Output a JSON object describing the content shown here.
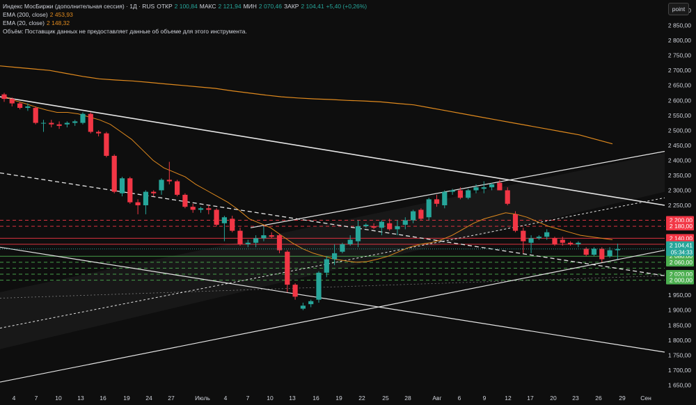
{
  "header": {
    "instrument": "Индекс МосБиржи (дополнительная сессия) · 1Д · RUS",
    "open_label": "ОТКР",
    "open_value": "2 100,84",
    "high_label": "МАКС",
    "high_value": "2 121,94",
    "low_label": "МИН",
    "low_value": "2 070,46",
    "close_label": "ЗАКР",
    "close_value": "2 104,41",
    "change": "+5,40 (+0,26%)",
    "ema200_label": "EMA (200, close)",
    "ema200_value": "2 453,93",
    "ema20_label": "EMA (20, close)",
    "ema20_value": "2 148,32",
    "volume_note": "Объём: Поставщик данных не предоставляет данные об объеме для этого инструмента."
  },
  "toolbar": {
    "point_label": "point"
  },
  "chart_data": {
    "type": "candlestick",
    "ylim": [
      1630,
      2935
    ],
    "y_ticks": [
      1650,
      1700,
      1750,
      1800,
      1850,
      1900,
      1950,
      2000,
      2050,
      2100,
      2150,
      2200,
      2250,
      2300,
      2350,
      2400,
      2450,
      2500,
      2550,
      2600,
      2650,
      2700,
      2750,
      2800,
      2850,
      2900
    ],
    "y_tick_labels": [
      "1 650,00",
      "1 700,00",
      "1 750,00",
      "1 800,00",
      "1 850,00",
      "1 900,00",
      "1 950,00",
      "2 000,00",
      "2 050,00",
      "2 100,00",
      "2 150,00",
      "2 200,00",
      "2 250,00",
      "2 300,00",
      "2 350,00",
      "2 400,00",
      "2 450,00",
      "2 500,00",
      "2 550,00",
      "2 600,00",
      "2 650,00",
      "2 700,00",
      "2 750,00",
      "2 800,00",
      "2 850,00",
      "2 900,00"
    ],
    "x_labels": [
      "4",
      "7",
      "10",
      "13",
      "16",
      "19",
      "24",
      "27",
      "Июль",
      "4",
      "7",
      "10",
      "13",
      "16",
      "19",
      "22",
      "25",
      "28",
      "Авг",
      "6",
      "9",
      "12",
      "17",
      "20",
      "23",
      "26",
      "29",
      "Сен"
    ],
    "candles": [
      {
        "o": 2620,
        "h": 2625,
        "l": 2595,
        "c": 2605
      },
      {
        "o": 2605,
        "h": 2610,
        "l": 2580,
        "c": 2590
      },
      {
        "o": 2590,
        "h": 2595,
        "l": 2570,
        "c": 2575
      },
      {
        "o": 2575,
        "h": 2590,
        "l": 2565,
        "c": 2580
      },
      {
        "o": 2575,
        "h": 2580,
        "l": 2520,
        "c": 2525
      },
      {
        "o": 2525,
        "h": 2535,
        "l": 2495,
        "c": 2525
      },
      {
        "o": 2525,
        "h": 2535,
        "l": 2510,
        "c": 2520
      },
      {
        "o": 2520,
        "h": 2530,
        "l": 2505,
        "c": 2515
      },
      {
        "o": 2520,
        "h": 2530,
        "l": 2510,
        "c": 2525
      },
      {
        "o": 2525,
        "h": 2535,
        "l": 2515,
        "c": 2530
      },
      {
        "o": 2525,
        "h": 2560,
        "l": 2520,
        "c": 2555
      },
      {
        "o": 2555,
        "h": 2560,
        "l": 2490,
        "c": 2495
      },
      {
        "o": 2495,
        "h": 2500,
        "l": 2480,
        "c": 2490
      },
      {
        "o": 2490,
        "h": 2495,
        "l": 2410,
        "c": 2415
      },
      {
        "o": 2415,
        "h": 2420,
        "l": 2290,
        "c": 2295
      },
      {
        "o": 2290,
        "h": 2345,
        "l": 2280,
        "c": 2340
      },
      {
        "o": 2340,
        "h": 2345,
        "l": 2255,
        "c": 2260
      },
      {
        "o": 2260,
        "h": 2270,
        "l": 2220,
        "c": 2250
      },
      {
        "o": 2250,
        "h": 2300,
        "l": 2220,
        "c": 2295
      },
      {
        "o": 2295,
        "h": 2300,
        "l": 2280,
        "c": 2290
      },
      {
        "o": 2300,
        "h": 2340,
        "l": 2285,
        "c": 2335
      },
      {
        "o": 2335,
        "h": 2395,
        "l": 2320,
        "c": 2330
      },
      {
        "o": 2330,
        "h": 2335,
        "l": 2280,
        "c": 2285
      },
      {
        "o": 2285,
        "h": 2290,
        "l": 2240,
        "c": 2245
      },
      {
        "o": 2245,
        "h": 2255,
        "l": 2225,
        "c": 2235
      },
      {
        "o": 2235,
        "h": 2245,
        "l": 2225,
        "c": 2240
      },
      {
        "o": 2240,
        "h": 2250,
        "l": 2220,
        "c": 2235
      },
      {
        "o": 2235,
        "h": 2240,
        "l": 2180,
        "c": 2185
      },
      {
        "o": 2190,
        "h": 2215,
        "l": 2130,
        "c": 2210
      },
      {
        "o": 2205,
        "h": 2215,
        "l": 2160,
        "c": 2165
      },
      {
        "o": 2165,
        "h": 2175,
        "l": 2115,
        "c": 2120
      },
      {
        "o": 2120,
        "h": 2135,
        "l": 2110,
        "c": 2125
      },
      {
        "o": 2125,
        "h": 2150,
        "l": 2110,
        "c": 2140
      },
      {
        "o": 2140,
        "h": 2180,
        "l": 2130,
        "c": 2150
      },
      {
        "o": 2150,
        "h": 2160,
        "l": 2140,
        "c": 2145
      },
      {
        "o": 2150,
        "h": 2155,
        "l": 2090,
        "c": 2100
      },
      {
        "o": 2095,
        "h": 2100,
        "l": 1960,
        "c": 1985
      },
      {
        "o": 1985,
        "h": 1990,
        "l": 1935,
        "c": 1945
      },
      {
        "o": 1905,
        "h": 1925,
        "l": 1900,
        "c": 1915
      },
      {
        "o": 1920,
        "h": 1935,
        "l": 1910,
        "c": 1930
      },
      {
        "o": 1935,
        "h": 2030,
        "l": 1925,
        "c": 2025
      },
      {
        "o": 2025,
        "h": 2080,
        "l": 2010,
        "c": 2070
      },
      {
        "o": 2070,
        "h": 2120,
        "l": 2050,
        "c": 2090
      },
      {
        "o": 2095,
        "h": 2125,
        "l": 2090,
        "c": 2120
      },
      {
        "o": 2120,
        "h": 2150,
        "l": 2115,
        "c": 2135
      },
      {
        "o": 2130,
        "h": 2200,
        "l": 2110,
        "c": 2180
      },
      {
        "o": 2180,
        "h": 2190,
        "l": 2175,
        "c": 2185
      },
      {
        "o": 2180,
        "h": 2190,
        "l": 2170,
        "c": 2175
      },
      {
        "o": 2175,
        "h": 2200,
        "l": 2150,
        "c": 2195
      },
      {
        "o": 2190,
        "h": 2205,
        "l": 2165,
        "c": 2170
      },
      {
        "o": 2170,
        "h": 2200,
        "l": 2150,
        "c": 2180
      },
      {
        "o": 2185,
        "h": 2210,
        "l": 2170,
        "c": 2200
      },
      {
        "o": 2200,
        "h": 2235,
        "l": 2190,
        "c": 2230
      },
      {
        "o": 2235,
        "h": 2240,
        "l": 2200,
        "c": 2205
      },
      {
        "o": 2210,
        "h": 2275,
        "l": 2200,
        "c": 2270
      },
      {
        "o": 2270,
        "h": 2285,
        "l": 2245,
        "c": 2255
      },
      {
        "o": 2250,
        "h": 2300,
        "l": 2240,
        "c": 2295
      },
      {
        "o": 2295,
        "h": 2305,
        "l": 2285,
        "c": 2300
      },
      {
        "o": 2300,
        "h": 2310,
        "l": 2270,
        "c": 2275
      },
      {
        "o": 2275,
        "h": 2305,
        "l": 2270,
        "c": 2300
      },
      {
        "o": 2300,
        "h": 2320,
        "l": 2290,
        "c": 2310
      },
      {
        "o": 2305,
        "h": 2330,
        "l": 2290,
        "c": 2310
      },
      {
        "o": 2310,
        "h": 2325,
        "l": 2300,
        "c": 2320
      },
      {
        "o": 2325,
        "h": 2335,
        "l": 2300,
        "c": 2300
      },
      {
        "o": 2300,
        "h": 2310,
        "l": 2250,
        "c": 2255
      },
      {
        "o": 2220,
        "h": 2230,
        "l": 2160,
        "c": 2165
      },
      {
        "o": 2165,
        "h": 2175,
        "l": 2090,
        "c": 2130
      },
      {
        "o": 2125,
        "h": 2150,
        "l": 2090,
        "c": 2140
      },
      {
        "o": 2140,
        "h": 2150,
        "l": 2135,
        "c": 2145
      },
      {
        "o": 2145,
        "h": 2170,
        "l": 2135,
        "c": 2160
      },
      {
        "o": 2140,
        "h": 2145,
        "l": 2115,
        "c": 2120
      },
      {
        "o": 2135,
        "h": 2145,
        "l": 2115,
        "c": 2125
      },
      {
        "o": 2125,
        "h": 2130,
        "l": 2115,
        "c": 2120
      },
      {
        "o": 2120,
        "h": 2130,
        "l": 2110,
        "c": 2125
      },
      {
        "o": 2105,
        "h": 2110,
        "l": 2080,
        "c": 2085
      },
      {
        "o": 2085,
        "h": 2110,
        "l": 2080,
        "c": 2105
      },
      {
        "o": 2105,
        "h": 2110,
        "l": 2060,
        "c": 2070
      },
      {
        "o": 2080,
        "h": 2110,
        "l": 2075,
        "c": 2100
      },
      {
        "o": 2100,
        "h": 2122,
        "l": 2070,
        "c": 2104
      }
    ],
    "ema200": [
      2715,
      2710,
      2705,
      2700,
      2690,
      2680,
      2672,
      2668,
      2665,
      2660,
      2655,
      2650,
      2645,
      2640,
      2632,
      2625,
      2618,
      2612,
      2608,
      2605,
      2603,
      2600,
      2598,
      2595,
      2590,
      2585,
      2575,
      2565,
      2555,
      2545,
      2535,
      2525,
      2515,
      2505,
      2495,
      2485,
      2470,
      2455
    ],
    "ema20": [
      2615,
      2600,
      2590,
      2578,
      2568,
      2560,
      2560,
      2555,
      2545,
      2535,
      2520,
      2495,
      2470,
      2435,
      2400,
      2375,
      2360,
      2345,
      2320,
      2300,
      2280,
      2260,
      2235,
      2205,
      2190,
      2175,
      2150,
      2125,
      2105,
      2090,
      2080,
      2070,
      2065,
      2060,
      2062,
      2070,
      2080,
      2095,
      2110,
      2120,
      2125,
      2135,
      2150,
      2170,
      2190,
      2205,
      2215,
      2225,
      2220,
      2210,
      2195,
      2180,
      2170,
      2160,
      2150,
      2145,
      2140,
      2135
    ],
    "horizontal_levels": [
      {
        "value": 2200,
        "label": "2 200,00",
        "color": "#f23645",
        "style": "dashed"
      },
      {
        "value": 2180,
        "label": "2 180,00",
        "color": "#f23645",
        "style": "dashed"
      },
      {
        "value": 2140,
        "label": "2 140,00",
        "color": "#f23645",
        "style": "solid"
      },
      {
        "value": 2120,
        "label": "2 120,00",
        "color": "#f23645",
        "style": "solid"
      },
      {
        "value": 2080,
        "label": "2 080,00",
        "color": "#4caf50",
        "style": "solid"
      },
      {
        "value": 2060,
        "label": "2 060,00",
        "color": "#4caf50",
        "style": "dashed"
      },
      {
        "value": 2040,
        "label": "",
        "color": "#4caf50",
        "style": "dashed"
      },
      {
        "value": 2020,
        "label": "2 020,00",
        "color": "#4caf50",
        "style": "dashed"
      },
      {
        "value": 2000,
        "label": "2 000,00",
        "color": "#4caf50",
        "style": "dashed"
      }
    ],
    "last_price": {
      "label": "2 104,41",
      "timer": "05:34:33",
      "value": 2104.41,
      "color": "#26a69a"
    },
    "colors": {
      "up": "#26a69a",
      "down": "#f23645",
      "ema200": "#e08a1e",
      "ema20": "#e08a1e",
      "trend": "#e6e6e6",
      "background": "#0e0e0e"
    }
  }
}
